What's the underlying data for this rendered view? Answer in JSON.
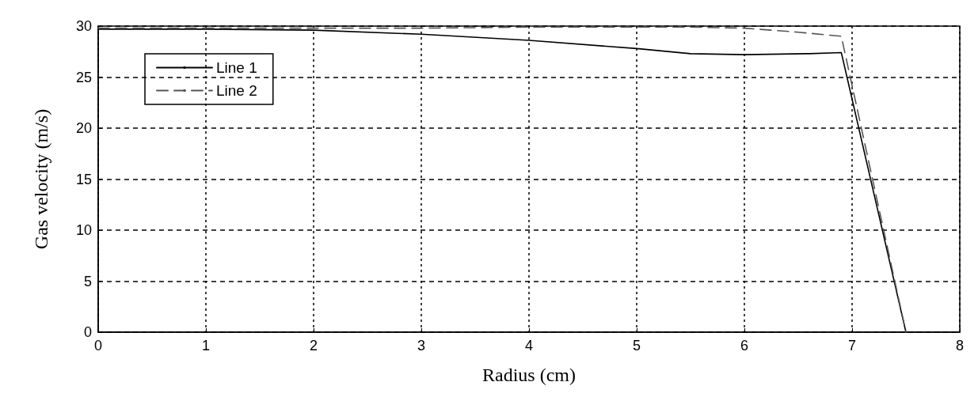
{
  "chart_data": {
    "type": "line",
    "xlabel": "Radius (cm)",
    "ylabel": "Gas velocity (m/s)",
    "xlim": [
      0,
      8
    ],
    "xticks": [
      0,
      1,
      2,
      3,
      4,
      5,
      6,
      7,
      8
    ],
    "ylim": [
      0,
      30
    ],
    "yticks": [
      0,
      5,
      10,
      15,
      20,
      25,
      30
    ],
    "grid": true,
    "legend": "top left",
    "marker": "none",
    "series": [
      {
        "name": "Line 1",
        "color": "#000000",
        "line_style": "solid",
        "x": [
          0,
          1,
          2,
          3,
          4,
          5,
          5.5,
          6,
          6.6,
          6.9,
          7.5
        ],
        "values": [
          29.7,
          29.7,
          29.6,
          29.2,
          28.6,
          27.8,
          27.3,
          27.2,
          27.3,
          27.4,
          0
        ]
      },
      {
        "name": "Line 2",
        "color": "#555555",
        "line_style": "dashed",
        "x": [
          0,
          1,
          2,
          3,
          4,
          5,
          5.5,
          6,
          6.5,
          6.9,
          7.5
        ],
        "values": [
          29.8,
          29.8,
          29.8,
          29.8,
          29.9,
          29.9,
          29.9,
          29.8,
          29.4,
          29.0,
          0
        ]
      }
    ]
  }
}
